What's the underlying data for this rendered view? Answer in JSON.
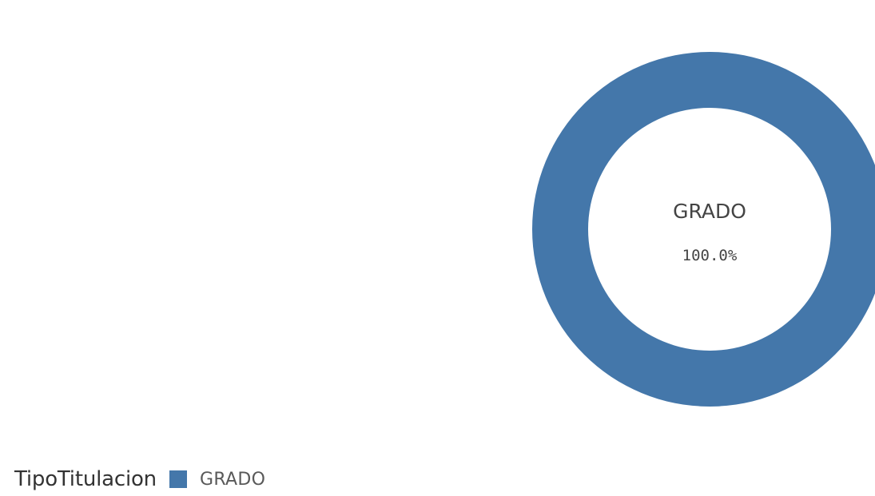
{
  "chart_data": {
    "type": "pie",
    "variant": "donut",
    "slices": [
      {
        "label": "GRADO",
        "value": 100.0,
        "percent_label": "100.0%",
        "color": "#4477aa"
      }
    ],
    "center_label": "GRADO",
    "center_value": "100.0%",
    "legend": {
      "title": "TipoTitulacion",
      "position": "bottom-left",
      "items": [
        {
          "label": "GRADO",
          "color": "#4477aa"
        }
      ]
    }
  }
}
